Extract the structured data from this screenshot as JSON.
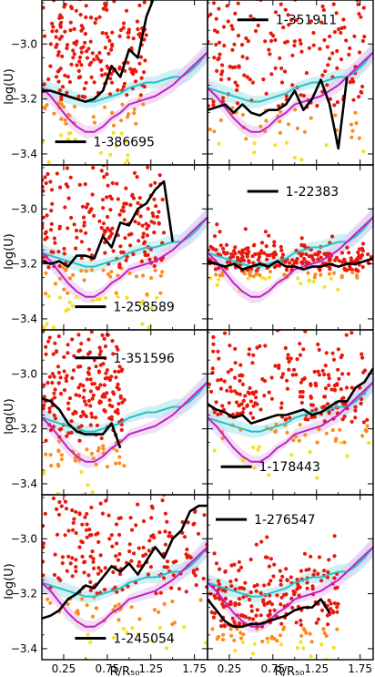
{
  "chart_data": {
    "type": "scatter",
    "layout": "4 rows x 2 columns, shared axes",
    "xlabel": "R/R₅₀",
    "ylabel": "log(U)",
    "xticks": [
      0.25,
      0.75,
      1.25,
      1.75
    ],
    "xticklabels": [
      "0.25",
      "0.75",
      "1.25",
      "1.75"
    ],
    "yticks": [
      -3.4,
      -3.2,
      -3.0
    ],
    "yticklabels": [
      "−3.4",
      "−3.2",
      "−3.0"
    ],
    "xlim": [
      0.0,
      1.9
    ],
    "ylim": [
      -3.44,
      -2.84
    ],
    "colors": {
      "spaxels_high": "#e8180c",
      "spaxels_mid": "#ff8a1c",
      "spaxels_low": "#f5e020",
      "galaxy_profile": "#000000",
      "reference_cyan": "#2bbfc6",
      "reference_magenta": "#c21fc8",
      "band_cyan": "#a9e6ea",
      "band_magenta": "#e7c5ec"
    },
    "reference_profiles": [
      {
        "color": "cyan",
        "x": [
          0.0,
          0.1,
          0.2,
          0.3,
          0.4,
          0.5,
          0.6,
          0.7,
          0.8,
          0.9,
          1.0,
          1.1,
          1.2,
          1.3,
          1.4,
          1.5,
          1.6,
          1.7,
          1.8,
          1.9
        ],
        "y": [
          -3.16,
          -3.17,
          -3.18,
          -3.19,
          -3.2,
          -3.21,
          -3.21,
          -3.2,
          -3.19,
          -3.18,
          -3.16,
          -3.15,
          -3.14,
          -3.14,
          -3.13,
          -3.12,
          -3.12,
          -3.1,
          -3.07,
          -3.03
        ]
      },
      {
        "color": "magenta",
        "x": [
          0.0,
          0.1,
          0.2,
          0.3,
          0.4,
          0.5,
          0.6,
          0.7,
          0.8,
          0.9,
          1.0,
          1.1,
          1.2,
          1.3,
          1.4,
          1.5,
          1.6,
          1.7,
          1.8,
          1.9
        ],
        "y": [
          -3.16,
          -3.19,
          -3.23,
          -3.27,
          -3.3,
          -3.32,
          -3.32,
          -3.3,
          -3.27,
          -3.25,
          -3.22,
          -3.21,
          -3.2,
          -3.19,
          -3.17,
          -3.15,
          -3.12,
          -3.09,
          -3.06,
          -3.03
        ]
      }
    ],
    "panels": [
      {
        "label": "1-386695",
        "profile": {
          "x": [
            0.0,
            0.1,
            0.2,
            0.3,
            0.4,
            0.5,
            0.6,
            0.7,
            0.8,
            0.9,
            1.0,
            1.1,
            1.2,
            1.3
          ],
          "y": [
            -3.17,
            -3.17,
            -3.18,
            -3.19,
            -3.2,
            -3.21,
            -3.2,
            -3.17,
            -3.08,
            -3.12,
            -3.02,
            -3.05,
            -2.9,
            -2.82
          ]
        },
        "scatter": {
          "x_range": [
            0.0,
            1.2
          ],
          "y_center": -3.05,
          "spread": 0.17
        }
      },
      {
        "label": "1-351911",
        "profile": {
          "x": [
            0.0,
            0.1,
            0.2,
            0.3,
            0.4,
            0.5,
            0.6,
            0.7,
            0.8,
            0.9,
            1.0,
            1.1,
            1.2,
            1.3,
            1.4,
            1.5,
            1.6
          ],
          "y": [
            -3.24,
            -3.23,
            -3.22,
            -3.25,
            -3.22,
            -3.25,
            -3.26,
            -3.24,
            -3.24,
            -3.22,
            -3.17,
            -3.24,
            -3.2,
            -3.13,
            -3.22,
            -3.38,
            -3.12
          ]
        },
        "scatter": {
          "x_range": [
            0.0,
            1.8
          ],
          "y_center": -3.05,
          "spread": 0.2
        }
      },
      {
        "label": "1-258589",
        "profile": {
          "x": [
            0.0,
            0.1,
            0.2,
            0.3,
            0.4,
            0.5,
            0.6,
            0.7,
            0.8,
            0.9,
            1.0,
            1.1,
            1.2,
            1.3,
            1.4,
            1.5
          ],
          "y": [
            -3.19,
            -3.2,
            -3.19,
            -3.21,
            -3.17,
            -3.17,
            -3.18,
            -3.1,
            -3.14,
            -3.05,
            -3.06,
            -3.0,
            -2.98,
            -2.93,
            -2.9,
            -3.12
          ]
        },
        "scatter": {
          "x_range": [
            0.0,
            1.4
          ],
          "y_center": -3.06,
          "spread": 0.17
        }
      },
      {
        "label": "1-22383",
        "profile": {
          "x": [
            0.0,
            0.1,
            0.2,
            0.3,
            0.4,
            0.5,
            0.6,
            0.7,
            0.8,
            0.9,
            1.0,
            1.1,
            1.2,
            1.3,
            1.4,
            1.5,
            1.6,
            1.7,
            1.8,
            1.9
          ],
          "y": [
            -3.19,
            -3.2,
            -3.21,
            -3.2,
            -3.22,
            -3.21,
            -3.2,
            -3.21,
            -3.19,
            -3.21,
            -3.21,
            -3.22,
            -3.21,
            -3.21,
            -3.2,
            -3.21,
            -3.2,
            -3.2,
            -3.19,
            -3.18
          ]
        },
        "scatter": {
          "x_range": [
            0.0,
            1.9
          ],
          "y_center": -3.19,
          "spread": 0.04
        }
      },
      {
        "label": "1-351596",
        "profile": {
          "x": [
            0.0,
            0.1,
            0.2,
            0.3,
            0.4,
            0.5,
            0.6,
            0.7,
            0.8,
            0.9
          ],
          "y": [
            -3.09,
            -3.1,
            -3.13,
            -3.18,
            -3.21,
            -3.22,
            -3.22,
            -3.22,
            -3.18,
            -3.27
          ]
        },
        "scatter": {
          "x_range": [
            0.0,
            0.95
          ],
          "y_center": -3.1,
          "spread": 0.16
        }
      },
      {
        "label": "1-178443",
        "profile": {
          "x": [
            0.0,
            0.1,
            0.2,
            0.3,
            0.4,
            0.5,
            0.6,
            0.7,
            0.8,
            0.9,
            1.0,
            1.1,
            1.2,
            1.3,
            1.4,
            1.5,
            1.6,
            1.7,
            1.8,
            1.9
          ],
          "y": [
            -3.11,
            -3.13,
            -3.14,
            -3.16,
            -3.15,
            -3.18,
            -3.17,
            -3.16,
            -3.15,
            -3.15,
            -3.14,
            -3.13,
            -3.15,
            -3.14,
            -3.12,
            -3.1,
            -3.1,
            -3.05,
            -3.03,
            -2.98
          ]
        },
        "scatter": {
          "x_range": [
            0.0,
            1.9
          ],
          "y_center": -3.07,
          "spread": 0.12
        }
      },
      {
        "label": "1-245054",
        "profile": {
          "x": [
            0.0,
            0.1,
            0.2,
            0.3,
            0.4,
            0.5,
            0.6,
            0.7,
            0.8,
            0.9,
            1.0,
            1.1,
            1.2,
            1.3,
            1.4,
            1.5,
            1.6,
            1.7,
            1.8,
            1.9
          ],
          "y": [
            -3.29,
            -3.28,
            -3.26,
            -3.22,
            -3.2,
            -3.17,
            -3.18,
            -3.14,
            -3.1,
            -3.12,
            -3.09,
            -3.13,
            -3.08,
            -3.03,
            -3.07,
            -3.0,
            -2.97,
            -2.9,
            -2.88,
            -2.88
          ]
        },
        "scatter": {
          "x_range": [
            0.0,
            1.9
          ],
          "y_center": -3.06,
          "spread": 0.17
        }
      },
      {
        "label": "1-276547",
        "profile": {
          "x": [
            0.0,
            0.1,
            0.2,
            0.3,
            0.4,
            0.5,
            0.6,
            0.7,
            0.8,
            0.9,
            1.0,
            1.1,
            1.2,
            1.3,
            1.4
          ],
          "y": [
            -3.22,
            -3.26,
            -3.3,
            -3.32,
            -3.32,
            -3.31,
            -3.31,
            -3.3,
            -3.29,
            -3.28,
            -3.26,
            -3.25,
            -3.25,
            -3.22,
            -3.27
          ]
        },
        "scatter": {
          "x_range": [
            0.0,
            1.5
          ],
          "y_center": -3.24,
          "spread": 0.09
        }
      }
    ]
  }
}
